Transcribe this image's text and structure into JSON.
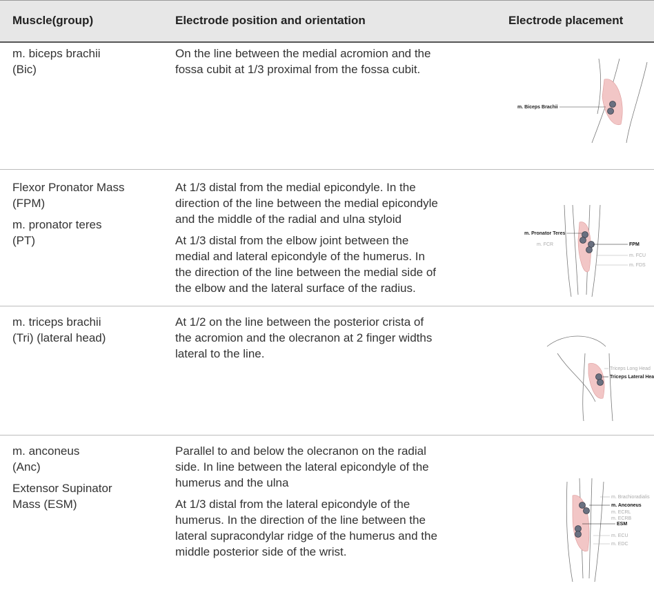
{
  "header": {
    "columns": [
      "Muscle(group)",
      "Electrode position and orientation",
      "Electrode placement"
    ]
  },
  "table": {
    "rows": [
      {
        "muscle": [
          [
            "m. biceps brachii",
            "(Bic)"
          ]
        ],
        "description": [
          [
            "On the line between the medial acromion and the",
            "fossa cubit at 1/3 proximal from the fossa cubit."
          ]
        ],
        "figure_labels": [
          "m. Biceps Brachii"
        ]
      },
      {
        "muscle": [
          [
            "Flexor Pronator Mass",
            "(FPM)"
          ],
          [
            "m. pronator teres",
            "(PT)"
          ]
        ],
        "description": [
          [
            "At 1/3 distal from the medial epicondyle. In the",
            "direction of the line between the medial epicondyle",
            "and the middle of the radial and ulna styloid"
          ],
          [
            "At 1/3 distal from the elbow joint between the",
            "medial and lateral epicondyle of the humerus. In",
            "the direction of the line between the medial side of",
            "the elbow and the lateral surface of the radius."
          ]
        ],
        "figure_labels": [
          "m. Pronator Teres",
          "m. FCR",
          "FPM",
          "m. FCU",
          "m. FDS"
        ]
      },
      {
        "muscle": [
          [
            "m. triceps brachii",
            "(Tri) (lateral head)"
          ]
        ],
        "description": [
          [
            "At 1/2 on the line between the posterior crista of",
            "the acromion and the olecranon at 2 finger widths",
            "lateral to the line."
          ]
        ],
        "figure_labels": [
          "Triceps Long Head",
          "Triceps Lateral Head"
        ]
      },
      {
        "muscle": [
          [
            "m. anconeus",
            "(Anc)"
          ],
          [
            "Extensor Supinator",
            "Mass (ESM)"
          ]
        ],
        "description": [
          [
            "Parallel to and below the olecranon on the radial",
            "side. In line between the lateral epicondyle of the",
            "humerus and the ulna"
          ],
          [
            "At 1/3 distal from the lateral epicondyle of the",
            "humerus. In the direction of the line between the",
            "lateral supracondylar ridge of the humerus and the",
            "middle posterior side of the wrist."
          ]
        ],
        "figure_labels": [
          "m. Brachioradialis",
          "m. Anconeus",
          "m. ECRL",
          "m. ECRB",
          "ESM",
          "m. ECU",
          "m. EDC"
        ]
      }
    ]
  }
}
